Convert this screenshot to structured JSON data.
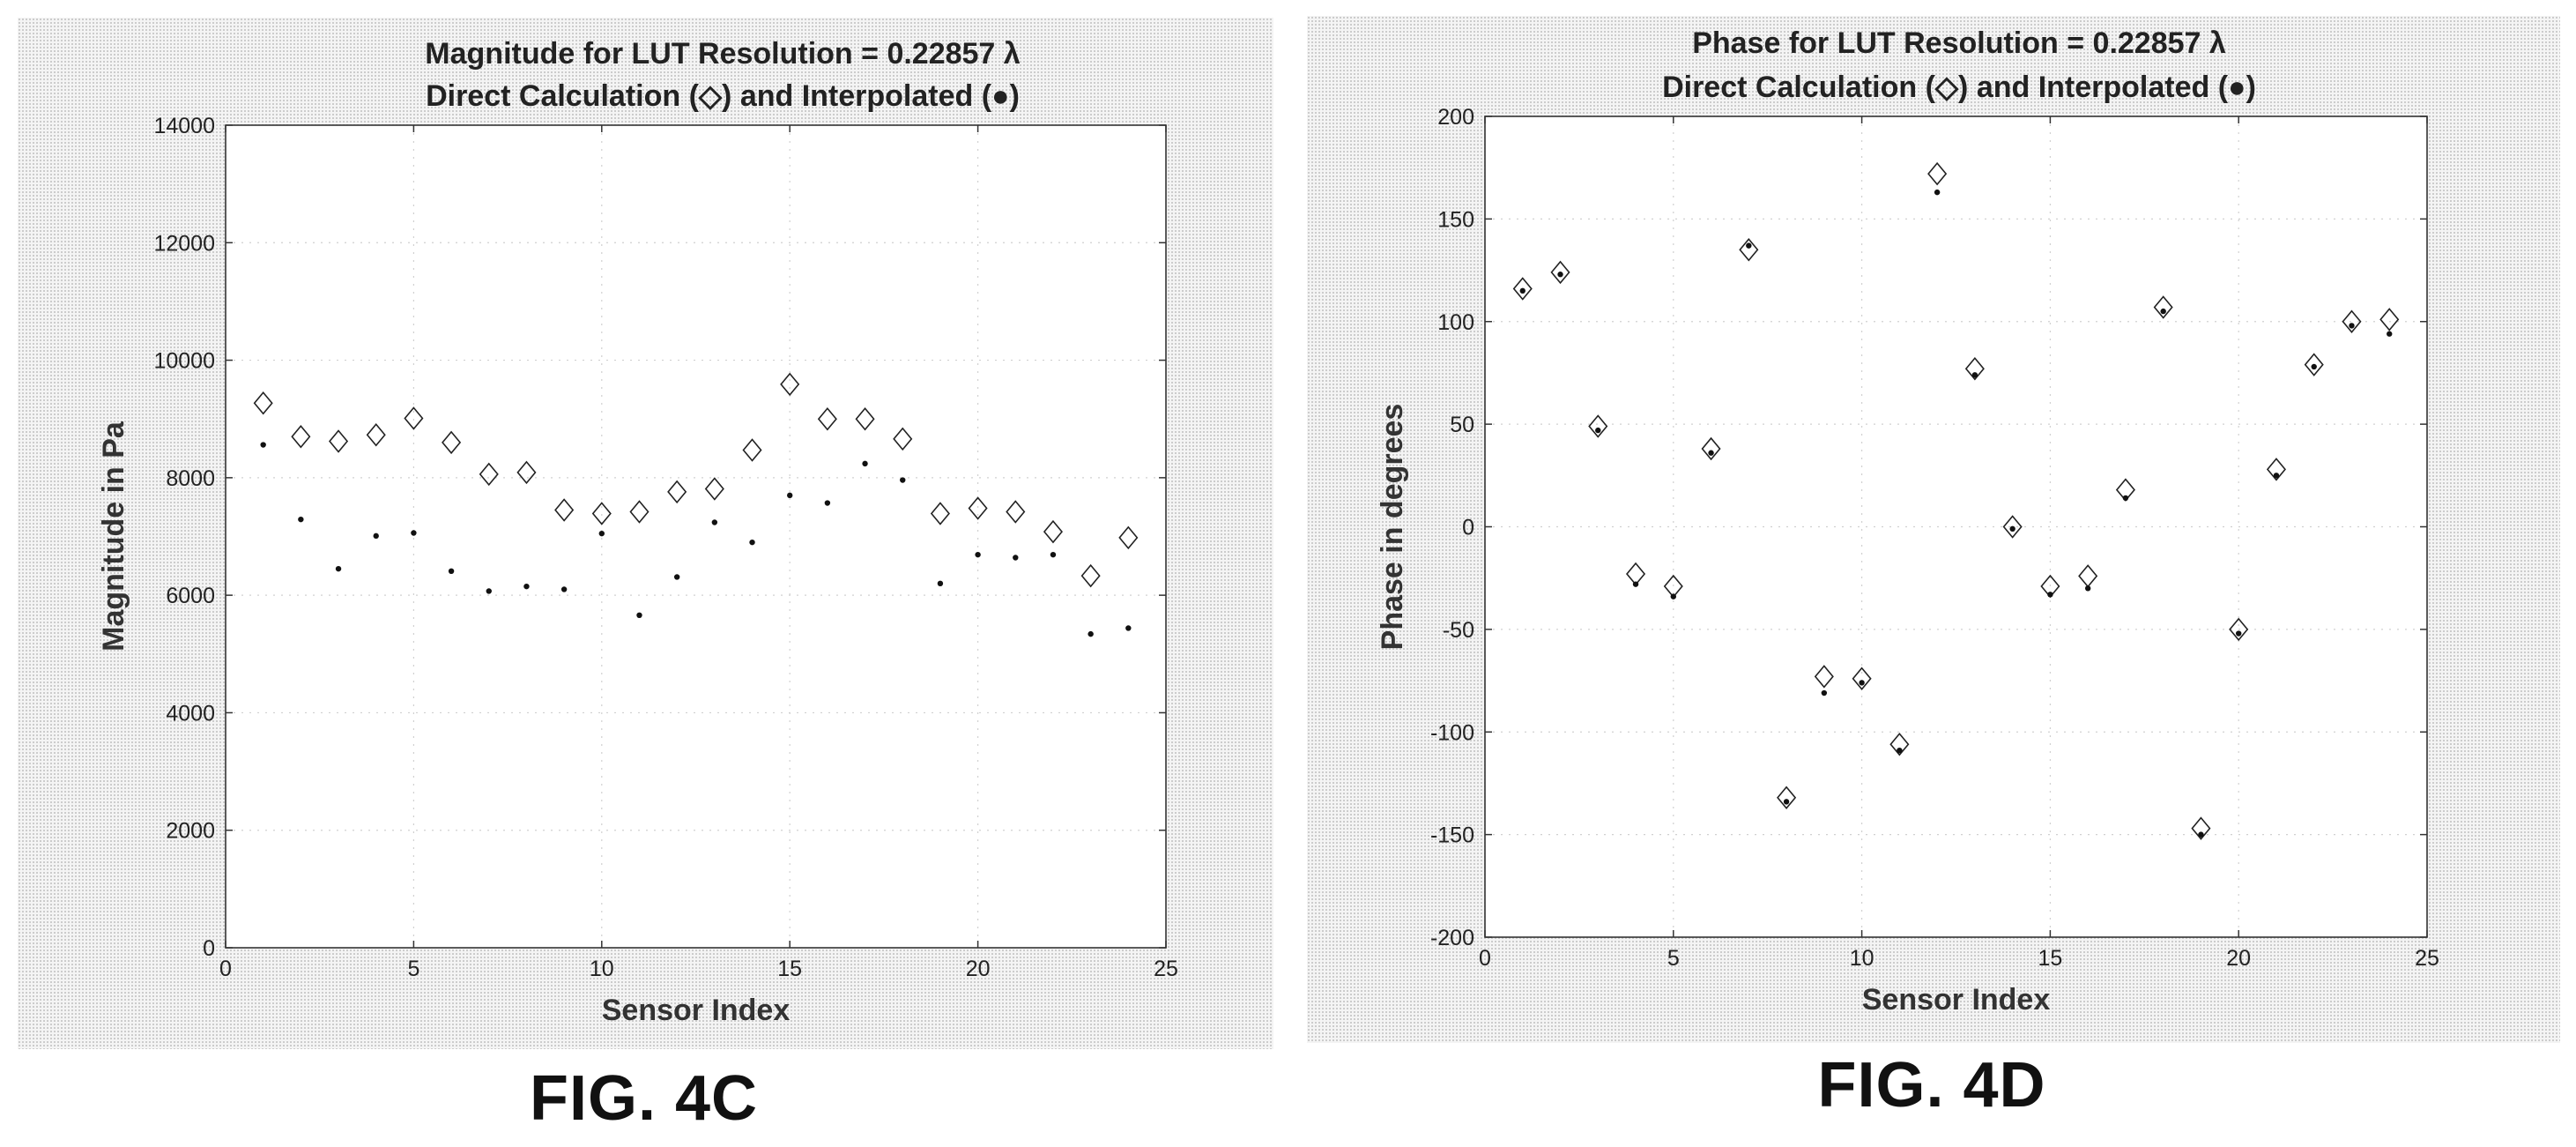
{
  "figures": [
    {
      "fig_label": "FIG. 4C",
      "chart_data": {
        "type": "scatter",
        "title": "Magnitude for LUT Resolution = 0.22857 λ",
        "subtitle": "Direct Calculation (◇) and Interpolated (●)",
        "xlabel": "Sensor Index",
        "ylabel": "Magnitude in Pa",
        "xlim": [
          0,
          25
        ],
        "ylim": [
          0,
          14000
        ],
        "xticks": [
          0,
          5,
          10,
          15,
          20,
          25
        ],
        "yticks": [
          0,
          2000,
          4000,
          6000,
          8000,
          10000,
          12000,
          14000
        ],
        "grid": true,
        "x": [
          1,
          2,
          3,
          4,
          5,
          6,
          7,
          8,
          9,
          10,
          11,
          12,
          13,
          14,
          15,
          16,
          17,
          18,
          19,
          20,
          21,
          22,
          23,
          24
        ],
        "series": [
          {
            "marker": "diamond",
            "values": [
              9270,
              8700,
              8620,
              8730,
              9010,
              8600,
              8060,
              8090,
              7450,
              7390,
              7420,
              7760,
              7810,
              8470,
              9590,
              9000,
              9000,
              8660,
              7390,
              7480,
              7420,
              7080,
              6330,
              6980
            ]
          },
          {
            "marker": "dot",
            "values": [
              8560,
              7290,
              6450,
              7010,
              7060,
              6410,
              6070,
              6150,
              6100,
              7050,
              5660,
              6310,
              7240,
              6900,
              7700,
              7570,
              8240,
              7960,
              6200,
              6690,
              6640,
              6690,
              5340,
              5440
            ]
          }
        ]
      }
    },
    {
      "fig_label": "FIG. 4D",
      "chart_data": {
        "type": "scatter",
        "title": "Phase for LUT Resolution = 0.22857 λ",
        "subtitle": "Direct Calculation (◇) and Interpolated (●)",
        "xlabel": "Sensor Index",
        "ylabel": "Phase in degrees",
        "xlim": [
          0,
          25
        ],
        "ylim": [
          -200,
          200
        ],
        "xticks": [
          0,
          5,
          10,
          15,
          20,
          25
        ],
        "yticks": [
          -200,
          -150,
          -100,
          -50,
          0,
          50,
          100,
          150,
          200
        ],
        "grid": true,
        "x": [
          1,
          2,
          3,
          4,
          5,
          6,
          7,
          8,
          9,
          10,
          11,
          12,
          13,
          14,
          15,
          16,
          17,
          18,
          19,
          20,
          21,
          22,
          23,
          24
        ],
        "series": [
          {
            "marker": "diamond",
            "values": [
              116,
              124,
              49,
              -23,
              -29,
              38,
              135,
              -132,
              -73,
              -74,
              -106,
              172,
              77,
              0,
              -29,
              -24,
              18,
              107,
              -147,
              -50,
              28,
              79,
              100,
              101
            ]
          },
          {
            "marker": "dot",
            "values": [
              115,
              123,
              47,
              -28,
              -34,
              36,
              137,
              -134,
              -81,
              -76,
              -109,
              163,
              74,
              -1,
              -33,
              -30,
              14,
              105,
              -150,
              -52,
              25,
              78,
              98,
              94
            ]
          }
        ]
      }
    }
  ]
}
